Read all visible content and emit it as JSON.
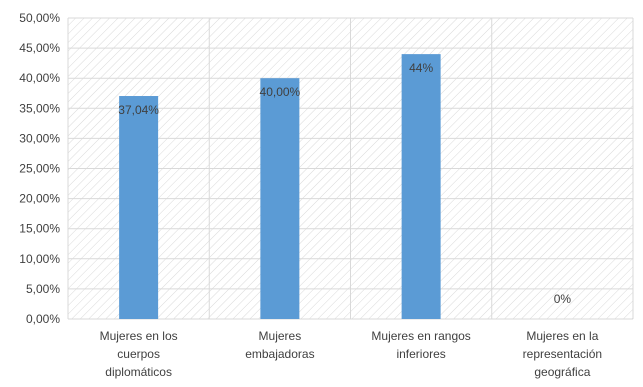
{
  "chart_data": {
    "type": "bar",
    "title": "",
    "xlabel": "",
    "ylabel": "",
    "categories": [
      [
        "Mujeres en los",
        "cuerpos",
        "diplomáticos"
      ],
      [
        "Mujeres",
        "embajadoras"
      ],
      [
        "Mujeres en rangos",
        "inferiores"
      ],
      [
        "Mujeres en la",
        "representación",
        "geográfica"
      ]
    ],
    "values": [
      37.04,
      40.0,
      44.0,
      0.0
    ],
    "data_labels": [
      "37,04%",
      "40,00%",
      "44%",
      "0%"
    ],
    "ylim": [
      0,
      50
    ],
    "yticks": [
      "0,00%",
      "5,00%",
      "10,00%",
      "15,00%",
      "20,00%",
      "25,00%",
      "30,00%",
      "35,00%",
      "40,00%",
      "45,00%",
      "50,00%"
    ],
    "grid": true,
    "legend": "none",
    "bar_color": "#5B9BD5",
    "hatch_color": "#D9D9D9",
    "grid_color": "#D9D9D9",
    "text_color": "#404040"
  }
}
